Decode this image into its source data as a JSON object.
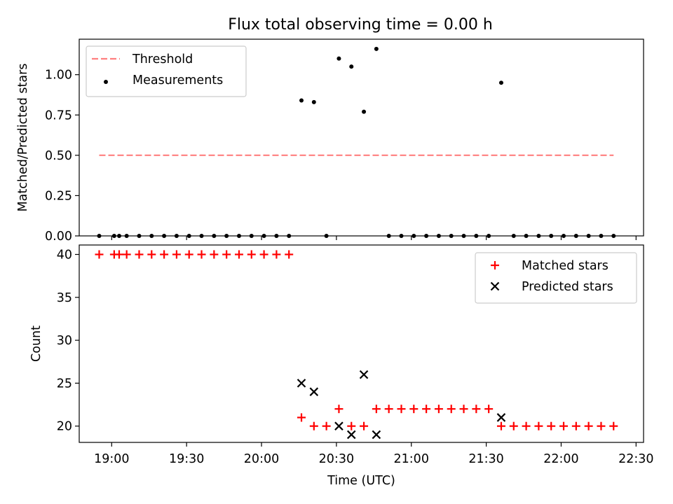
{
  "figure": {
    "title": "Flux total observing time = 0.00 h"
  },
  "chart_data": [
    {
      "type": "scatter",
      "title": "Flux total observing time = 0.00 h",
      "xlabel": "",
      "ylabel": "Matched/Predicted stars",
      "x_unit": "time (UTC, HH:MM)",
      "xlim": [
        "18:47",
        "22:33"
      ],
      "ylim": [
        0,
        1.22
      ],
      "yticks": [
        0.0,
        0.25,
        0.5,
        0.75,
        1.0
      ],
      "ytick_labels": [
        "0.00",
        "0.25",
        "0.50",
        "0.75",
        "1.00"
      ],
      "legend_placement": "upper left",
      "legend": [
        {
          "label": "Threshold",
          "style": "dashed-line",
          "color": "#ff7f7f"
        },
        {
          "label": "Measurements",
          "style": "dot",
          "color": "#000000"
        }
      ],
      "threshold": {
        "name": "Threshold",
        "y": 0.5,
        "x_start": "18:55",
        "x_end": "22:21",
        "color": "#ff7f7f"
      },
      "series": [
        {
          "name": "Measurements",
          "color": "#000000",
          "x": [
            "18:55",
            "19:01",
            "19:03",
            "19:06",
            "19:11",
            "19:16",
            "19:21",
            "19:26",
            "19:31",
            "19:36",
            "19:41",
            "19:46",
            "19:51",
            "19:56",
            "20:01",
            "20:06",
            "20:11",
            "20:16",
            "20:21",
            "20:26",
            "20:31",
            "20:36",
            "20:41",
            "20:46",
            "20:51",
            "20:56",
            "21:01",
            "21:06",
            "21:11",
            "21:16",
            "21:21",
            "21:26",
            "21:31",
            "21:36",
            "21:41",
            "21:46",
            "21:51",
            "21:56",
            "22:01",
            "22:06",
            "22:11",
            "22:16",
            "22:21"
          ],
          "y": [
            0,
            0,
            0,
            0,
            0,
            0,
            0,
            0,
            0,
            0,
            0,
            0,
            0,
            0,
            0,
            0,
            0,
            0.84,
            0.83,
            0,
            1.1,
            1.05,
            0.77,
            1.16,
            0,
            0,
            0,
            0,
            0,
            0,
            0,
            0,
            0,
            0.95,
            0,
            0,
            0,
            0,
            0,
            0,
            0,
            0,
            0
          ]
        }
      ]
    },
    {
      "type": "scatter",
      "title": "",
      "xlabel": "Time (UTC)",
      "ylabel": "Count",
      "x_unit": "time (UTC, HH:MM)",
      "xlim": [
        "18:47",
        "22:33"
      ],
      "ylim": [
        18.1,
        41.1
      ],
      "yticks": [
        20,
        25,
        30,
        35,
        40
      ],
      "ytick_labels": [
        "20",
        "25",
        "30",
        "35",
        "40"
      ],
      "xticks": [
        "19:00",
        "19:30",
        "20:00",
        "20:30",
        "21:00",
        "21:30",
        "22:00",
        "22:30"
      ],
      "legend_placement": "upper right",
      "legend": [
        {
          "label": "Matched stars",
          "marker": "+",
          "color": "#ff0000"
        },
        {
          "label": "Predicted stars",
          "marker": "x",
          "color": "#000000"
        }
      ],
      "series": [
        {
          "name": "Matched stars",
          "marker": "+",
          "color": "#ff0000",
          "x": [
            "18:55",
            "19:01",
            "19:03",
            "19:06",
            "19:11",
            "19:16",
            "19:21",
            "19:26",
            "19:31",
            "19:36",
            "19:41",
            "19:46",
            "19:51",
            "19:56",
            "20:01",
            "20:06",
            "20:11",
            "20:16",
            "20:21",
            "20:26",
            "20:31",
            "20:36",
            "20:41",
            "20:46",
            "20:51",
            "20:56",
            "21:01",
            "21:06",
            "21:11",
            "21:16",
            "21:21",
            "21:26",
            "21:31",
            "21:36",
            "21:41",
            "21:46",
            "21:51",
            "21:56",
            "22:01",
            "22:06",
            "22:11",
            "22:16",
            "22:21"
          ],
          "y": [
            40,
            40,
            40,
            40,
            40,
            40,
            40,
            40,
            40,
            40,
            40,
            40,
            40,
            40,
            40,
            40,
            40,
            21,
            20,
            20,
            22,
            20,
            20,
            22,
            22,
            22,
            22,
            22,
            22,
            22,
            22,
            22,
            22,
            20,
            20,
            20,
            20,
            20,
            20,
            20,
            20,
            20,
            20
          ]
        },
        {
          "name": "Predicted stars",
          "marker": "x",
          "color": "#000000",
          "x": [
            "20:16",
            "20:21",
            "20:31",
            "20:36",
            "20:41",
            "20:46",
            "21:36"
          ],
          "y": [
            25,
            24,
            20,
            19,
            26,
            19,
            21
          ]
        }
      ]
    }
  ]
}
